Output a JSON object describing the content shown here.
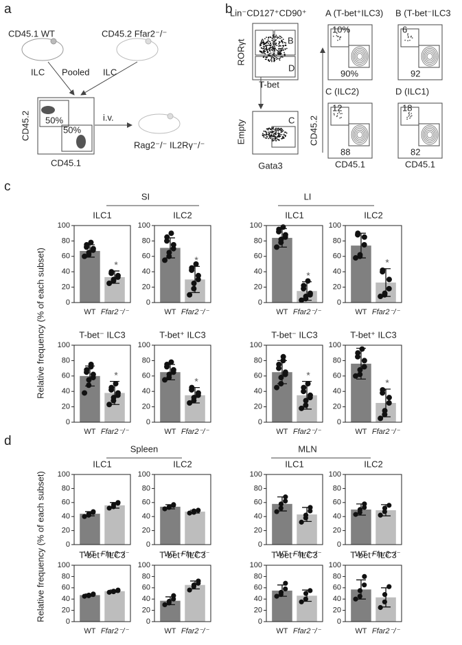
{
  "panels": {
    "a": "a",
    "b": "b",
    "c": "c",
    "d": "d"
  },
  "panel_a": {
    "donor_wt": "CD45.1 WT",
    "donor_ko": "CD45.2 Ffar2⁻/⁻",
    "ilc_left": "ILC",
    "pooled": "Pooled",
    "ilc_right": "ILC",
    "y_axis": "CD45.2",
    "x_axis": "CD45.1",
    "gate_top": "50%",
    "gate_bottom": "50%",
    "route": "i.v.",
    "recipient": "Rag2⁻/⁻ IL2Rγ⁻/⁻"
  },
  "panel_b": {
    "title": "Lin⁻CD127⁺CD90⁺",
    "y_top": "RORγt",
    "x_top": "T-bet",
    "gate_a": "A",
    "gate_b": "B",
    "gate_d": "D",
    "y_bottom": "Empty",
    "x_bottom": "Gata3",
    "gate_c": "C",
    "y_right": "CD45.2",
    "x_left": "CD45.1",
    "x_right": "CD45.1",
    "plots": [
      {
        "title": "A (T-bet⁺ILC3)",
        "top": "10%",
        "bottom": "90%"
      },
      {
        "title": "B (T-bet⁻ILC3",
        "top": "6",
        "bottom": "92"
      },
      {
        "title": "C (ILC2)",
        "top": "12",
        "bottom": "88"
      },
      {
        "title": "D (ILC1)",
        "top": "18",
        "bottom": "82"
      }
    ]
  },
  "groups": {
    "si": "SI",
    "li": "LI",
    "spleen": "Spleen",
    "mln": "MLN"
  },
  "y_label_c": "Relative frequency (% of each subset)",
  "y_label_d": "Relative frequency (% of each subset)",
  "chart_data": [
    {
      "type": "bar",
      "title": "ILC1",
      "categories": [
        "WT",
        "Ffar2⁻/⁻"
      ],
      "colors": [
        "#808080",
        "#bdbdbd"
      ],
      "values": [
        67,
        33
      ],
      "errors": [
        8,
        8
      ],
      "points": [
        [
          60,
          62,
          65,
          68,
          70,
          72,
          75,
          78
        ],
        [
          25,
          28,
          30,
          33,
          35,
          38,
          40
        ]
      ],
      "annotation": "*",
      "ylim": [
        0,
        100
      ],
      "yticks": [
        0,
        20,
        40,
        60,
        80,
        100
      ]
    },
    {
      "type": "bar",
      "title": "ILC2",
      "categories": [
        "WT",
        "Ffar2⁻/⁻"
      ],
      "colors": [
        "#808080",
        "#bdbdbd"
      ],
      "values": [
        71,
        30
      ],
      "errors": [
        13,
        17
      ],
      "points": [
        [
          55,
          60,
          65,
          70,
          75,
          80,
          85,
          90
        ],
        [
          10,
          18,
          25,
          30,
          35,
          42,
          45,
          50
        ]
      ],
      "annotation": "*",
      "ylim": [
        0,
        100
      ],
      "yticks": [
        0,
        20,
        40,
        60,
        80,
        100
      ]
    },
    {
      "type": "bar",
      "title": "ILC1",
      "categories": [
        "WT",
        "Ffar2⁻/⁻"
      ],
      "colors": [
        "#808080",
        "#bdbdbd"
      ],
      "values": [
        84,
        15
      ],
      "errors": [
        12,
        12
      ],
      "points": [
        [
          72,
          78,
          82,
          85,
          88,
          92,
          95,
          98
        ],
        [
          3,
          5,
          8,
          10,
          12,
          18,
          22,
          28
        ]
      ],
      "annotation": "*",
      "ylim": [
        0,
        100
      ],
      "yticks": [
        0,
        20,
        40,
        60,
        80,
        100
      ]
    },
    {
      "type": "bar",
      "title": "ILC2",
      "categories": [
        "WT",
        "Ffar2⁻/⁻"
      ],
      "colors": [
        "#808080",
        "#bdbdbd"
      ],
      "values": [
        74,
        26
      ],
      "errors": [
        16,
        18
      ],
      "points": [
        [
          58,
          60,
          62,
          75,
          85,
          88,
          90
        ],
        [
          8,
          10,
          12,
          18,
          30,
          40,
          42
        ]
      ],
      "annotation": "*",
      "ylim": [
        0,
        100
      ],
      "yticks": [
        0,
        20,
        40,
        60,
        80,
        100
      ]
    },
    {
      "type": "bar",
      "title": "T-bet⁻ ILC3",
      "categories": [
        "WT",
        "Ffar2⁻/⁻"
      ],
      "colors": [
        "#808080",
        "#bdbdbd"
      ],
      "values": [
        60,
        38
      ],
      "errors": [
        13,
        15
      ],
      "points": [
        [
          38,
          48,
          55,
          58,
          62,
          65,
          68,
          72,
          75
        ],
        [
          23,
          28,
          32,
          35,
          38,
          42,
          45,
          50
        ]
      ],
      "annotation": "*",
      "ylim": [
        0,
        100
      ],
      "yticks": [
        0,
        20,
        40,
        60,
        80,
        100
      ]
    },
    {
      "type": "bar",
      "title": "T-bet⁺ ILC3",
      "categories": [
        "WT",
        "Ffar2⁻/⁻"
      ],
      "colors": [
        "#808080",
        "#bdbdbd"
      ],
      "values": [
        65,
        35
      ],
      "errors": [
        10,
        10
      ],
      "points": [
        [
          55,
          58,
          62,
          65,
          68,
          72,
          75,
          78
        ],
        [
          25,
          28,
          32,
          35,
          38,
          42,
          45
        ]
      ],
      "annotation": "*",
      "ylim": [
        0,
        100
      ],
      "yticks": [
        0,
        20,
        40,
        60,
        80,
        100
      ]
    },
    {
      "type": "bar",
      "title": "T-bet⁻ ILC3",
      "categories": [
        "WT",
        "Ffar2⁻/⁻"
      ],
      "colors": [
        "#808080",
        "#bdbdbd"
      ],
      "values": [
        65,
        35
      ],
      "errors": [
        15,
        18
      ],
      "points": [
        [
          45,
          50,
          58,
          62,
          65,
          70,
          75,
          80,
          85
        ],
        [
          18,
          22,
          28,
          32,
          35,
          40,
          45,
          50
        ]
      ],
      "annotation": "*",
      "ylim": [
        0,
        100
      ],
      "yticks": [
        0,
        20,
        40,
        60,
        80,
        100
      ]
    },
    {
      "type": "bar",
      "title": "T-bet⁺ ILC3",
      "categories": [
        "WT",
        "Ffar2⁻/⁻"
      ],
      "colors": [
        "#808080",
        "#bdbdbd"
      ],
      "values": [
        76,
        25
      ],
      "errors": [
        20,
        18
      ],
      "points": [
        [
          60,
          62,
          68,
          72,
          80,
          85,
          90,
          95
        ],
        [
          5,
          10,
          15,
          25,
          32,
          38,
          42
        ]
      ],
      "annotation": "*",
      "ylim": [
        0,
        100
      ],
      "yticks": [
        0,
        20,
        40,
        60,
        80,
        100
      ]
    },
    {
      "type": "bar",
      "title": "ILC1",
      "categories": [
        "WT",
        "Ffar2⁻/⁻"
      ],
      "colors": [
        "#808080",
        "#bdbdbd"
      ],
      "values": [
        44,
        56
      ],
      "errors": [
        3,
        4
      ],
      "points": [
        [
          40,
          42,
          44,
          46,
          47
        ],
        [
          52,
          54,
          57,
          59,
          60
        ]
      ],
      "ylim": [
        0,
        100
      ],
      "yticks": [
        0,
        20,
        40,
        60,
        80,
        100
      ]
    },
    {
      "type": "bar",
      "title": "ILC2",
      "categories": [
        "WT",
        "Ffar2⁻/⁻"
      ],
      "colors": [
        "#808080",
        "#bdbdbd"
      ],
      "values": [
        54,
        47
      ],
      "errors": [
        3,
        2
      ],
      "points": [
        [
          51,
          53,
          54,
          56,
          57
        ],
        [
          45,
          46,
          48,
          49
        ]
      ],
      "ylim": [
        0,
        100
      ],
      "yticks": [
        0,
        20,
        40,
        60,
        80,
        100
      ]
    },
    {
      "type": "bar",
      "title": "ILC1",
      "categories": [
        "WT",
        "Ffar2⁻/⁻"
      ],
      "colors": [
        "#808080",
        "#bdbdbd"
      ],
      "values": [
        58,
        43
      ],
      "errors": [
        10,
        10
      ],
      "points": [
        [
          47,
          52,
          58,
          62,
          68
        ],
        [
          32,
          38,
          42,
          48,
          53
        ]
      ],
      "ylim": [
        0,
        100
      ],
      "yticks": [
        0,
        20,
        40,
        60,
        80,
        100
      ]
    },
    {
      "type": "bar",
      "title": "ILC2",
      "categories": [
        "WT",
        "Ffar2⁻/⁻"
      ],
      "colors": [
        "#808080",
        "#bdbdbd"
      ],
      "values": [
        50,
        49
      ],
      "errors": [
        8,
        8
      ],
      "points": [
        [
          43,
          46,
          50,
          53,
          58
        ],
        [
          42,
          47,
          52,
          56
        ]
      ],
      "ylim": [
        0,
        100
      ],
      "yticks": [
        0,
        20,
        40,
        60,
        80,
        100
      ]
    },
    {
      "type": "bar",
      "title": "T-bet⁻ ILC3",
      "categories": [
        "WT",
        "Ffar2⁻/⁻"
      ],
      "colors": [
        "#808080",
        "#bdbdbd"
      ],
      "values": [
        47,
        54
      ],
      "errors": [
        2,
        2
      ],
      "points": [
        [
          45,
          46,
          47,
          48,
          49
        ],
        [
          52,
          53,
          54,
          55,
          56
        ]
      ],
      "ylim": [
        0,
        100
      ],
      "yticks": [
        0,
        20,
        40,
        60,
        80,
        100
      ]
    },
    {
      "type": "bar",
      "title": "T-bet⁺ ILC3",
      "categories": [
        "WT",
        "Ffar2⁻/⁻"
      ],
      "colors": [
        "#808080",
        "#bdbdbd"
      ],
      "values": [
        37,
        65
      ],
      "errors": [
        7,
        7
      ],
      "points": [
        [
          30,
          33,
          36,
          40,
          46
        ],
        [
          56,
          62,
          65,
          68,
          72
        ]
      ],
      "ylim": [
        0,
        100
      ],
      "yticks": [
        0,
        20,
        40,
        60,
        80,
        100
      ]
    },
    {
      "type": "bar",
      "title": "T-bet⁻ ILC3",
      "categories": [
        "WT",
        "Ffar2⁻/⁻"
      ],
      "colors": [
        "#808080",
        "#bdbdbd"
      ],
      "values": [
        55,
        46
      ],
      "errors": [
        10,
        10
      ],
      "points": [
        [
          45,
          48,
          52,
          58,
          68
        ],
        [
          35,
          40,
          50,
          55
        ]
      ],
      "ylim": [
        0,
        100
      ],
      "yticks": [
        0,
        20,
        40,
        60,
        80,
        100
      ]
    },
    {
      "type": "bar",
      "title": "T-bet⁺ ILC3",
      "categories": [
        "WT",
        "Ffar2⁻/⁻"
      ],
      "colors": [
        "#808080",
        "#bdbdbd"
      ],
      "values": [
        57,
        43
      ],
      "errors": [
        17,
        17
      ],
      "points": [
        [
          40,
          45,
          55,
          65,
          80
        ],
        [
          25,
          35,
          48,
          62
        ]
      ],
      "ylim": [
        0,
        100
      ],
      "yticks": [
        0,
        20,
        40,
        60,
        80,
        100
      ]
    }
  ]
}
